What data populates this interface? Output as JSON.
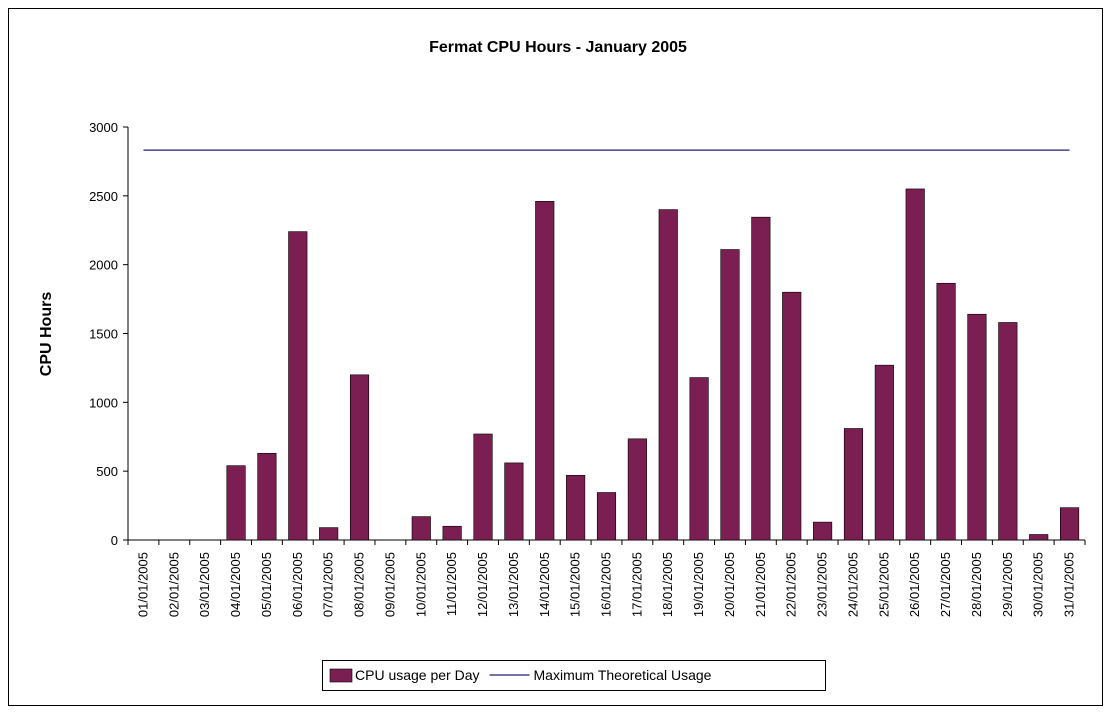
{
  "chart_data": {
    "type": "bar",
    "title": "Fermat CPU Hours - January 2005",
    "ylabel": "CPU Hours",
    "categories": [
      "01/01/2005",
      "02/01/2005",
      "03/01/2005",
      "04/01/2005",
      "05/01/2005",
      "06/01/2005",
      "07/01/2005",
      "08/01/2005",
      "09/01/2005",
      "10/01/2005",
      "11/01/2005",
      "12/01/2005",
      "13/01/2005",
      "14/01/2005",
      "15/01/2005",
      "16/01/2005",
      "17/01/2005",
      "18/01/2005",
      "19/01/2005",
      "20/01/2005",
      "21/01/2005",
      "22/01/2005",
      "23/01/2005",
      "24/01/2005",
      "25/01/2005",
      "26/01/2005",
      "27/01/2005",
      "28/01/2005",
      "29/01/2005",
      "30/01/2005",
      "31/01/2005"
    ],
    "series": [
      {
        "name": "CPU usage per Day",
        "type": "bar",
        "color": "#7b1f52",
        "values": [
          0,
          0,
          0,
          540,
          630,
          2240,
          90,
          1200,
          0,
          170,
          100,
          770,
          560,
          2460,
          470,
          345,
          735,
          2400,
          1180,
          2110,
          2345,
          1800,
          130,
          810,
          1270,
          2550,
          1865,
          1640,
          1580,
          40,
          235
        ]
      },
      {
        "name": "Maximum Theoretical Usage",
        "type": "line",
        "color": "#1f1f7a",
        "values": [
          2832,
          2832,
          2832,
          2832,
          2832,
          2832,
          2832,
          2832,
          2832,
          2832,
          2832,
          2832,
          2832,
          2832,
          2832,
          2832,
          2832,
          2832,
          2832,
          2832,
          2832,
          2832,
          2832,
          2832,
          2832,
          2832,
          2832,
          2832,
          2832,
          2832,
          2832
        ]
      }
    ],
    "ylim": [
      0,
      3000
    ],
    "yticks": [
      0,
      500,
      1000,
      1500,
      2000,
      2500,
      3000
    ],
    "grid": false,
    "legend": "bottom"
  }
}
